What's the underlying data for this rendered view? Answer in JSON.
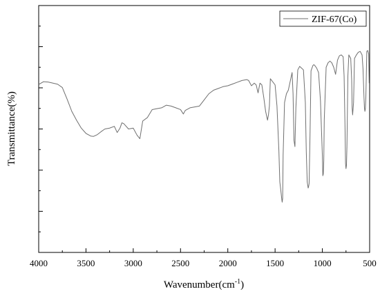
{
  "chart_data": {
    "type": "line",
    "title": "",
    "xlabel": "Wavenumber(cm",
    "xlabel_sup": "-1",
    "xlabel_close": ")",
    "ylabel": "Transmittance(%)",
    "xlim": [
      4000,
      500
    ],
    "x_reversed": true,
    "y_tick_labels_shown": false,
    "grid": false,
    "legend_position": "top-right",
    "x_tick_labels": [
      "4000",
      "3500",
      "3000",
      "2500",
      "2000",
      "1500",
      "1000",
      "500"
    ],
    "series": [
      {
        "name": "ZIF-67(Co)",
        "color": "#6e6e6e",
        "x": [
          4000,
          3950,
          3900,
          3800,
          3750,
          3700,
          3650,
          3600,
          3550,
          3500,
          3450,
          3420,
          3380,
          3340,
          3300,
          3250,
          3200,
          3170,
          3140,
          3120,
          3100,
          3050,
          3000,
          2960,
          2930,
          2900,
          2850,
          2800,
          2750,
          2700,
          2650,
          2600,
          2550,
          2500,
          2470,
          2450,
          2400,
          2350,
          2300,
          2250,
          2200,
          2150,
          2100,
          2050,
          2000,
          1950,
          1900,
          1850,
          1800,
          1780,
          1750,
          1720,
          1700,
          1680,
          1660,
          1640,
          1620,
          1600,
          1580,
          1570,
          1560,
          1550,
          1500,
          1480,
          1460,
          1450,
          1440,
          1430,
          1425,
          1420,
          1415,
          1400,
          1380,
          1360,
          1340,
          1320,
          1310,
          1300,
          1290,
          1280,
          1260,
          1240,
          1220,
          1200,
          1180,
          1170,
          1160,
          1150,
          1145,
          1140,
          1130,
          1120,
          1100,
          1090,
          1080,
          1060,
          1040,
          1020,
          1000,
          995,
          990,
          985,
          980,
          960,
          940,
          920,
          900,
          880,
          860,
          840,
          820,
          800,
          780,
          770,
          760,
          755,
          750,
          745,
          740,
          730,
          720,
          700,
          690,
          685,
          680,
          670,
          660,
          640,
          620,
          600,
          580,
          570,
          560,
          555,
          550,
          545,
          540,
          530,
          520,
          510,
          505
        ],
        "y": [
          65.2,
          66.8,
          66.6,
          65.4,
          63.5,
          57.0,
          50.0,
          45.0,
          40.5,
          37.5,
          36.0,
          35.8,
          36.8,
          38.5,
          40.0,
          40.5,
          41.5,
          38.0,
          40.5,
          43.5,
          43.0,
          40.0,
          40.5,
          36.5,
          34.5,
          44.5,
          46.5,
          51.0,
          51.5,
          52.0,
          53.5,
          53.0,
          52.0,
          51.0,
          48.5,
          50.5,
          52.0,
          52.5,
          53.0,
          56.5,
          60.0,
          62.0,
          63.0,
          64.0,
          64.5,
          65.5,
          66.5,
          67.5,
          68.0,
          67.5,
          64.5,
          66.0,
          65.0,
          60.5,
          66.0,
          65.0,
          58.0,
          50.0,
          45.0,
          48.0,
          53.0,
          68.5,
          65.0,
          53.0,
          28.0,
          10.0,
          5.5,
          0.5,
          -1.5,
          0.5,
          25.0,
          55.0,
          60.0,
          62.0,
          67.0,
          72.0,
          60.0,
          33.5,
          30.0,
          52.0,
          73.5,
          75.5,
          74.5,
          73.5,
          55.0,
          27.0,
          10.0,
          6.5,
          7.5,
          9.0,
          38.0,
          73.0,
          76.0,
          76.5,
          76.0,
          74.5,
          72.0,
          56.0,
          25.0,
          13.5,
          14.5,
          22.0,
          45.0,
          75.0,
          77.5,
          78.5,
          77.5,
          75.0,
          71.0,
          79.0,
          81.5,
          82.0,
          81.0,
          70.0,
          40.0,
          20.5,
          17.5,
          19.5,
          30.0,
          70.0,
          82.0,
          80.0,
          68.0,
          52.0,
          48.0,
          55.0,
          80.0,
          82.0,
          83.5,
          84.0,
          82.0,
          74.0,
          58.5,
          52.0,
          50.0,
          51.5,
          58.0,
          84.0,
          84.5,
          82.5,
          66.0
        ]
      }
    ]
  }
}
